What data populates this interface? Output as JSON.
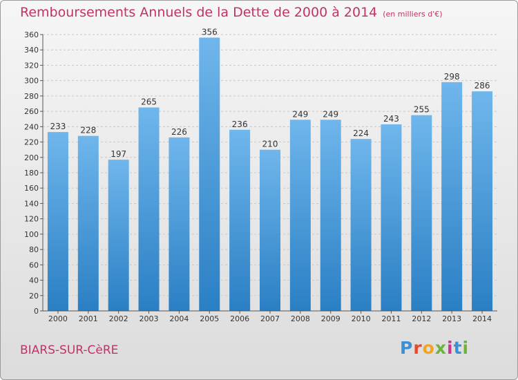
{
  "header": {
    "title": "Remboursements Annuels de la Dette de 2000 à 2014",
    "unit": "(en milliers d'€)"
  },
  "footer": {
    "commune": "BIARS-SUR-CèRE",
    "logo_letters": [
      "P",
      "r",
      "o",
      "x",
      "i",
      "t",
      "i"
    ],
    "logo_colors": [
      "#3a8fd6",
      "#e8482c",
      "#f2a51a",
      "#6ab43e",
      "#d1318f",
      "#3a8fd6",
      "#6ab43e"
    ]
  },
  "colors": {
    "bar_top": "#6fb6ec",
    "bar_bottom": "#2a7fc4",
    "grid": "#c8c8c8",
    "title": "#c23268"
  },
  "chart_data": {
    "type": "bar",
    "categories": [
      "2000",
      "2001",
      "2002",
      "2003",
      "2004",
      "2005",
      "2006",
      "2007",
      "2008",
      "2009",
      "2010",
      "2011",
      "2012",
      "2013",
      "2014"
    ],
    "values": [
      233,
      228,
      197,
      265,
      226,
      356,
      236,
      210,
      249,
      249,
      224,
      243,
      255,
      298,
      286
    ],
    "title": "Remboursements Annuels de la Dette de 2000 à 2014",
    "xlabel": "",
    "ylabel": "",
    "ylim": [
      0,
      360
    ],
    "yticks": [
      0,
      20,
      40,
      60,
      80,
      100,
      120,
      140,
      160,
      180,
      200,
      220,
      240,
      260,
      280,
      300,
      320,
      340,
      360
    ],
    "grid": true,
    "legend": "none"
  }
}
